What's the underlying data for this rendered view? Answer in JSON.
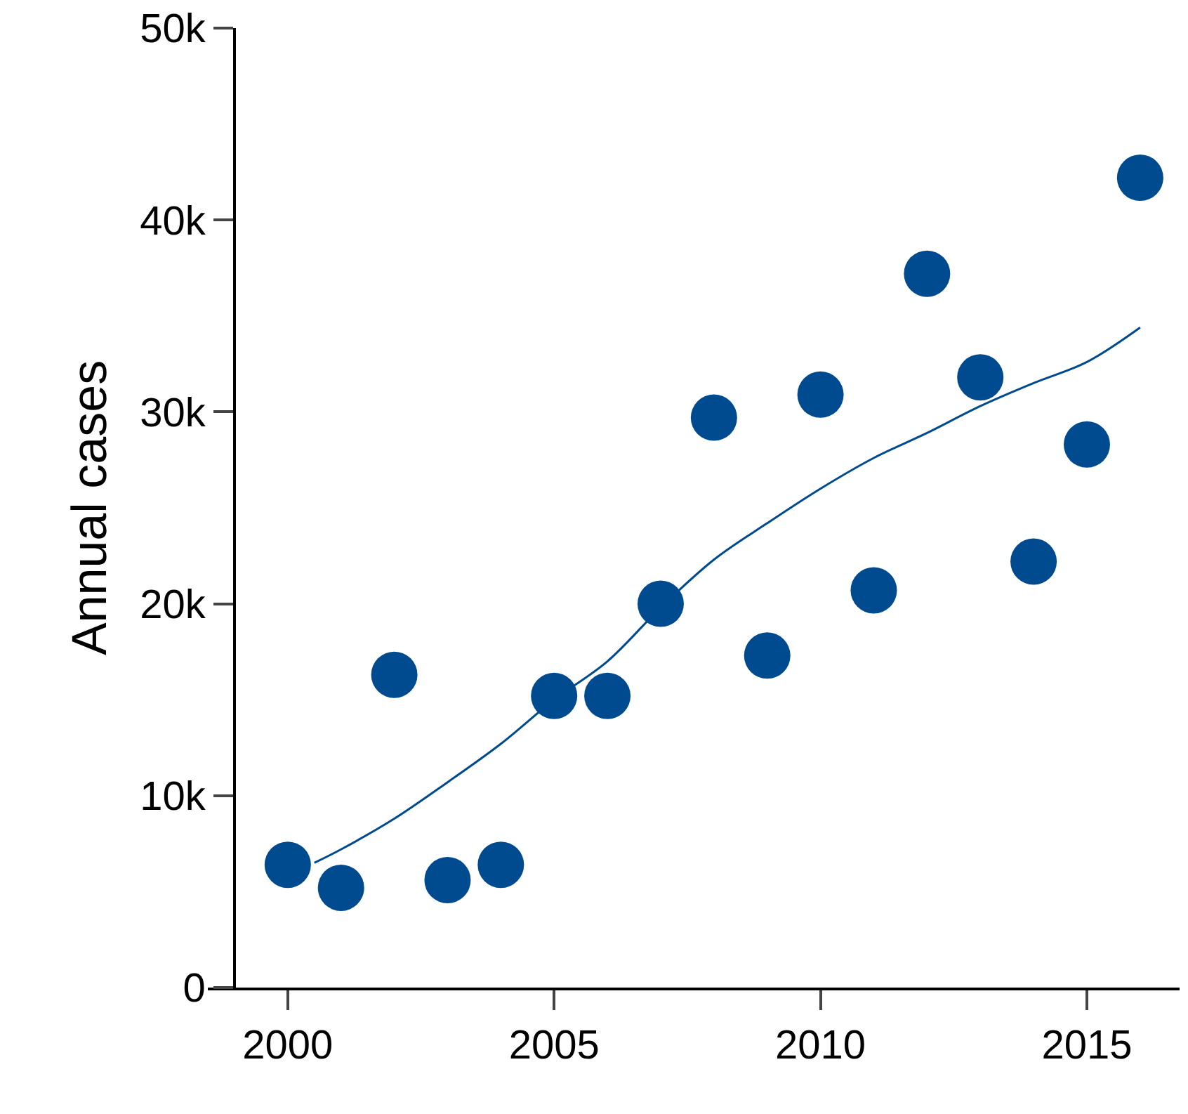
{
  "chart_data": {
    "type": "scatter",
    "ylabel": "Annual cases",
    "x": [
      2000,
      2001,
      2002,
      2003,
      2004,
      2005,
      2006,
      2007,
      2008,
      2009,
      2010,
      2011,
      2012,
      2013,
      2014,
      2015,
      2016
    ],
    "series": [
      {
        "color": "#004a8f",
        "marker": "circle",
        "values": [
          6400,
          5200,
          16300,
          5600,
          6400,
          15200,
          15200,
          20000,
          29700,
          17300,
          30900,
          20700,
          37200,
          31800,
          22200,
          28300,
          42200
        ]
      },
      {
        "type": "line",
        "color": "#004a8f",
        "marker": "none",
        "x": [
          2000.5,
          2001,
          2002,
          2003,
          2004,
          2005,
          2006,
          2007,
          2008,
          2009,
          2010,
          2011,
          2012,
          2013,
          2014,
          2015,
          2016
        ],
        "values": [
          6500,
          7200,
          8800,
          10700,
          12700,
          15000,
          17000,
          19800,
          22300,
          24200,
          26000,
          27600,
          28900,
          30300,
          31500,
          32600,
          34400
        ]
      }
    ],
    "xlim": [
      1998.5,
      2016.74
    ],
    "xticks": [
      2000,
      2005,
      2010,
      2015
    ],
    "ylim": [
      0,
      50000
    ],
    "yticks": [
      {
        "value": 0,
        "label": "0"
      },
      {
        "value": 10000,
        "label": "10k"
      },
      {
        "value": 20000,
        "label": "20k"
      },
      {
        "value": 30000,
        "label": "30k"
      },
      {
        "value": 40000,
        "label": "40k"
      },
      {
        "value": 50000,
        "label": "50k"
      }
    ]
  }
}
